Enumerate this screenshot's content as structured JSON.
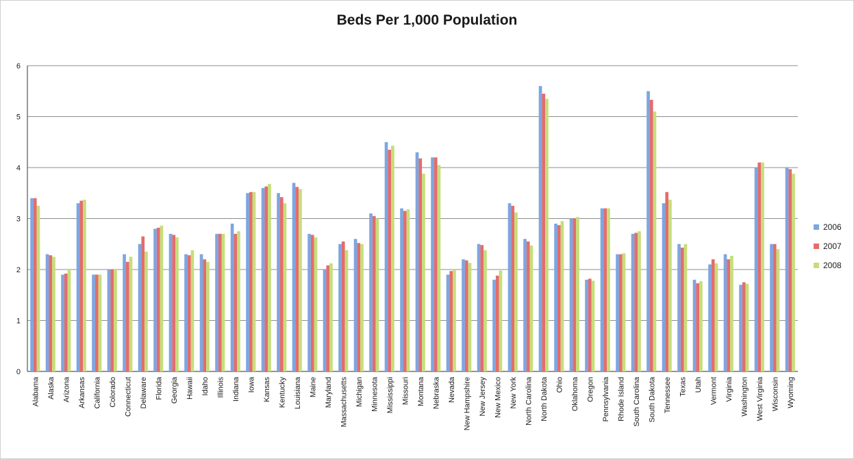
{
  "chart_data": {
    "type": "bar",
    "title": "Beds Per 1,000 Population",
    "xlabel": "",
    "ylabel": "",
    "ylim": [
      0,
      6
    ],
    "yticks": [
      "0",
      "1",
      "2",
      "3",
      "4",
      "5",
      "6"
    ],
    "grid": true,
    "legend_position": "right",
    "categories": [
      "Alabama",
      "Alaska",
      "Arizona",
      "Arkansas",
      "California",
      "Colorado",
      "Connecticut",
      "Delaware",
      "Florida",
      "Georgia",
      "Hawaii",
      "Idaho",
      "Illinois",
      "Indiana",
      "Iowa",
      "Kansas",
      "Kentucky",
      "Louisiana",
      "Maine",
      "Maryland",
      "Massachusetts",
      "Michigan",
      "Minnesota",
      "Mississippi",
      "Missouri",
      "Montana",
      "Nebraska",
      "Nevada",
      "New Hampshire",
      "New Jersey",
      "New Mexico",
      "New York",
      "North Carolina",
      "North Dakota",
      "Ohio",
      "Oklahoma",
      "Oregon",
      "Pennsylvania",
      "Rhode Island",
      "South Carolina",
      "South Dakota",
      "Tennessee",
      "Texas",
      "Utah",
      "Vermont",
      "Virginia",
      "Washington",
      "West Virginia",
      "Wisconsin",
      "Wyoming"
    ],
    "series": [
      {
        "name": "2006",
        "color": "#7ea6e0",
        "values": [
          3.4,
          2.3,
          1.9,
          3.3,
          1.9,
          2.0,
          2.3,
          2.5,
          2.8,
          2.7,
          2.3,
          2.3,
          2.7,
          2.9,
          3.5,
          3.6,
          3.5,
          3.7,
          2.7,
          2.0,
          2.5,
          2.6,
          3.1,
          4.5,
          3.2,
          4.3,
          4.2,
          1.9,
          2.2,
          2.5,
          1.8,
          3.3,
          2.6,
          5.6,
          2.9,
          3.0,
          1.8,
          3.2,
          2.3,
          2.7,
          5.5,
          3.3,
          2.5,
          1.8,
          2.1,
          2.3,
          1.7,
          4.0,
          2.5,
          4.0
        ]
      },
      {
        "name": "2007",
        "color": "#e46c6c",
        "values": [
          3.4,
          2.28,
          1.92,
          3.35,
          1.9,
          2.0,
          2.15,
          2.65,
          2.82,
          2.68,
          2.28,
          2.2,
          2.7,
          2.7,
          3.52,
          3.63,
          3.42,
          3.62,
          2.68,
          2.08,
          2.55,
          2.52,
          3.05,
          4.35,
          3.15,
          4.18,
          4.2,
          1.97,
          2.18,
          2.48,
          1.88,
          3.25,
          2.55,
          5.45,
          2.87,
          3.0,
          1.82,
          3.2,
          2.3,
          2.72,
          5.33,
          3.52,
          2.43,
          1.73,
          2.2,
          2.2,
          1.75,
          4.1,
          2.5,
          3.97
        ]
      },
      {
        "name": "2008",
        "color": "#c6de7a",
        "values": [
          3.25,
          2.25,
          2.0,
          3.37,
          1.9,
          2.0,
          2.25,
          2.35,
          2.86,
          2.63,
          2.38,
          2.15,
          2.7,
          2.75,
          3.52,
          3.68,
          3.3,
          3.58,
          2.63,
          2.12,
          2.38,
          2.5,
          3.0,
          4.43,
          3.18,
          3.88,
          4.05,
          2.0,
          2.13,
          2.38,
          1.98,
          3.12,
          2.47,
          5.35,
          2.95,
          3.03,
          1.78,
          3.2,
          2.32,
          2.75,
          5.1,
          3.37,
          2.5,
          1.77,
          2.12,
          2.27,
          1.72,
          4.1,
          2.4,
          3.88
        ]
      }
    ]
  }
}
